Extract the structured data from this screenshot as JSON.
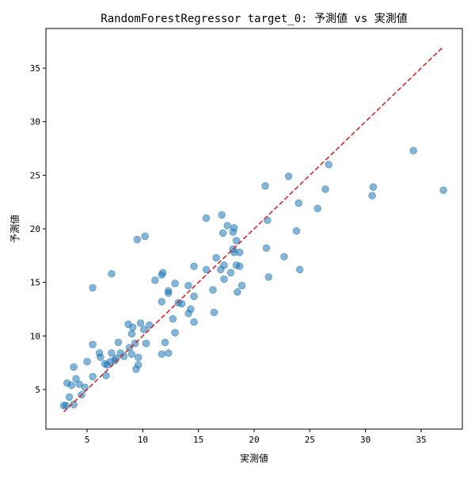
{
  "chart_data": {
    "type": "scatter",
    "title": "RandomForestRegressor target_0: 予測値 vs 実測値",
    "xlabel": "実測値",
    "ylabel": "予測値",
    "xlim": [
      1.3,
      38.7
    ],
    "ylim": [
      1.3,
      38.7
    ],
    "x_ticks": [
      5,
      10,
      15,
      20,
      25,
      30,
      35
    ],
    "y_ticks": [
      5,
      10,
      15,
      20,
      25,
      30,
      35
    ],
    "grid": false,
    "colors": {
      "points": "#1f77b4",
      "reference_line": "#d62728"
    },
    "reference_line": {
      "from": [
        2.9,
        2.9
      ],
      "to": [
        37.0,
        37.0
      ],
      "style": "dashed"
    },
    "series": [
      {
        "points": [
          [
            2.9,
            3.5
          ],
          [
            3.1,
            3.5
          ],
          [
            3.2,
            5.6
          ],
          [
            3.4,
            4.3
          ],
          [
            3.6,
            5.4
          ],
          [
            3.8,
            3.6
          ],
          [
            3.8,
            7.1
          ],
          [
            4.0,
            6.0
          ],
          [
            4.3,
            5.5
          ],
          [
            4.5,
            4.5
          ],
          [
            4.8,
            5.2
          ],
          [
            5.0,
            7.6
          ],
          [
            5.5,
            6.2
          ],
          [
            5.5,
            9.2
          ],
          [
            5.5,
            14.5
          ],
          [
            6.1,
            8.4
          ],
          [
            6.2,
            8.0
          ],
          [
            6.6,
            7.4
          ],
          [
            6.7,
            6.3
          ],
          [
            6.8,
            7.3
          ],
          [
            7.1,
            7.6
          ],
          [
            7.2,
            8.4
          ],
          [
            7.2,
            15.8
          ],
          [
            7.5,
            7.7
          ],
          [
            7.6,
            7.9
          ],
          [
            7.8,
            9.4
          ],
          [
            8.0,
            8.4
          ],
          [
            8.3,
            8.1
          ],
          [
            8.7,
            11.1
          ],
          [
            8.8,
            8.9
          ],
          [
            9.0,
            8.3
          ],
          [
            9.0,
            10.2
          ],
          [
            9.1,
            10.8
          ],
          [
            9.3,
            9.3
          ],
          [
            9.4,
            6.9
          ],
          [
            9.5,
            19.0
          ],
          [
            9.6,
            7.3
          ],
          [
            9.6,
            8.0
          ],
          [
            9.8,
            11.2
          ],
          [
            10.1,
            10.6
          ],
          [
            10.2,
            19.3
          ],
          [
            10.3,
            9.3
          ],
          [
            10.6,
            11.0
          ],
          [
            11.1,
            15.2
          ],
          [
            11.7,
            8.3
          ],
          [
            11.7,
            13.2
          ],
          [
            11.7,
            15.7
          ],
          [
            11.8,
            15.9
          ],
          [
            12.0,
            9.4
          ],
          [
            12.3,
            8.4
          ],
          [
            12.3,
            14.0
          ],
          [
            12.3,
            14.2
          ],
          [
            12.7,
            11.6
          ],
          [
            12.9,
            10.3
          ],
          [
            12.9,
            14.9
          ],
          [
            13.2,
            13.1
          ],
          [
            13.5,
            13.0
          ],
          [
            14.1,
            12.1
          ],
          [
            14.1,
            14.7
          ],
          [
            14.3,
            12.5
          ],
          [
            14.6,
            16.5
          ],
          [
            14.6,
            11.3
          ],
          [
            14.6,
            13.7
          ],
          [
            15.7,
            16.2
          ],
          [
            15.7,
            21.0
          ],
          [
            16.3,
            14.3
          ],
          [
            16.4,
            12.2
          ],
          [
            16.6,
            17.3
          ],
          [
            17.0,
            16.2
          ],
          [
            17.1,
            21.3
          ],
          [
            17.2,
            19.6
          ],
          [
            17.3,
            15.3
          ],
          [
            17.3,
            16.6
          ],
          [
            17.6,
            20.3
          ],
          [
            17.9,
            15.9
          ],
          [
            18.1,
            18.1
          ],
          [
            18.1,
            19.7
          ],
          [
            18.2,
            20.1
          ],
          [
            18.2,
            17.8
          ],
          [
            18.4,
            16.6
          ],
          [
            18.4,
            18.9
          ],
          [
            18.5,
            14.1
          ],
          [
            18.7,
            17.8
          ],
          [
            18.7,
            16.5
          ],
          [
            18.9,
            14.7
          ],
          [
            21.0,
            24.0
          ],
          [
            21.1,
            18.2
          ],
          [
            21.2,
            20.8
          ],
          [
            21.3,
            15.5
          ],
          [
            22.7,
            17.4
          ],
          [
            23.1,
            24.9
          ],
          [
            23.8,
            19.8
          ],
          [
            24.0,
            22.4
          ],
          [
            24.1,
            16.2
          ],
          [
            25.7,
            21.9
          ],
          [
            26.4,
            23.7
          ],
          [
            26.7,
            26.0
          ],
          [
            30.6,
            23.1
          ],
          [
            30.7,
            23.9
          ],
          [
            34.3,
            27.3
          ],
          [
            37.0,
            23.6
          ]
        ]
      }
    ]
  }
}
